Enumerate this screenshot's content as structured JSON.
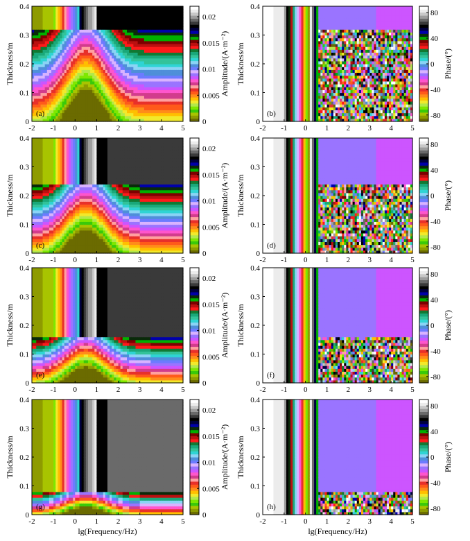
{
  "figure": {
    "x_axis_label": "lg(Frequency/Hz)",
    "y_axis_label": "Thickness/m",
    "x_ticks": [
      "-2",
      "-1",
      "0",
      "1",
      "2",
      "3",
      "4",
      "5"
    ],
    "y_ticks": [
      "0",
      "0.1",
      "0.2",
      "0.3",
      "0.4"
    ]
  },
  "chart_data": [
    {
      "type": "heatmap",
      "panel_label": "(a)",
      "quantity": "amplitude",
      "layer_top": 0.32,
      "xlabel": "",
      "ylabel": "Thickness/m",
      "xlim": [
        -2,
        5
      ],
      "ylim": [
        0,
        0.4
      ],
      "colorbar": {
        "label": "Amplitude/(A·m⁻²)",
        "ticks": [
          "0",
          "0.005",
          "0.01",
          "0.015",
          "0.02"
        ],
        "range": [
          0,
          0.022
        ]
      }
    },
    {
      "type": "heatmap",
      "panel_label": "(b)",
      "quantity": "phase",
      "layer_top": 0.32,
      "xlabel": "",
      "ylabel": "Thickness/m",
      "xlim": [
        -2,
        5
      ],
      "ylim": [
        0,
        0.4
      ],
      "colorbar": {
        "label": "Phase/(°)",
        "ticks": [
          "-80",
          "-40",
          "0",
          "40",
          "80"
        ],
        "range": [
          -90,
          90
        ]
      }
    },
    {
      "type": "heatmap",
      "panel_label": "(c)",
      "quantity": "amplitude",
      "layer_top": 0.24,
      "xlabel": "",
      "ylabel": "Thickness/m",
      "xlim": [
        -2,
        5
      ],
      "ylim": [
        0,
        0.4
      ],
      "colorbar": {
        "label": "Amplitude/(A·m⁻²)",
        "ticks": [
          "0",
          "0.005",
          "0.01",
          "0.015",
          "0.02"
        ],
        "range": [
          0,
          0.022
        ]
      }
    },
    {
      "type": "heatmap",
      "panel_label": "(d)",
      "quantity": "phase",
      "layer_top": 0.24,
      "xlabel": "",
      "ylabel": "Thickness/m",
      "xlim": [
        -2,
        5
      ],
      "ylim": [
        0,
        0.4
      ],
      "colorbar": {
        "label": "Phase/(°)",
        "ticks": [
          "-80",
          "-40",
          "0",
          "40",
          "80"
        ],
        "range": [
          -90,
          90
        ]
      }
    },
    {
      "type": "heatmap",
      "panel_label": "(e)",
      "quantity": "amplitude",
      "layer_top": 0.16,
      "xlabel": "",
      "ylabel": "Thickness/m",
      "xlim": [
        -2,
        5
      ],
      "ylim": [
        0,
        0.4
      ],
      "colorbar": {
        "label": "Amplitude/(A·m⁻²)",
        "ticks": [
          "0",
          "0.005",
          "0.01",
          "0.015",
          "0.02"
        ],
        "range": [
          0,
          0.022
        ]
      }
    },
    {
      "type": "heatmap",
      "panel_label": "(f)",
      "quantity": "phase",
      "layer_top": 0.16,
      "xlabel": "",
      "ylabel": "Thickness/m",
      "xlim": [
        -2,
        5
      ],
      "ylim": [
        0,
        0.4
      ],
      "colorbar": {
        "label": "Phase/(°)",
        "ticks": [
          "-80",
          "-40",
          "0",
          "40",
          "80"
        ],
        "range": [
          -90,
          90
        ]
      }
    },
    {
      "type": "heatmap",
      "panel_label": "(g)",
      "quantity": "amplitude",
      "layer_top": 0.08,
      "xlabel": "lg(Frequency/Hz)",
      "ylabel": "Thickness/m",
      "xlim": [
        -2,
        5
      ],
      "ylim": [
        0,
        0.4
      ],
      "colorbar": {
        "label": "Amplitude/(A·m⁻²)",
        "ticks": [
          "0",
          "0.005",
          "0.01",
          "0.015",
          "0.02"
        ],
        "range": [
          0,
          0.022
        ]
      }
    },
    {
      "type": "heatmap",
      "panel_label": "(h)",
      "quantity": "phase",
      "layer_top": 0.08,
      "xlabel": "lg(Frequency/Hz)",
      "ylabel": "Thickness/m",
      "xlim": [
        -2,
        5
      ],
      "ylim": [
        0,
        0.4
      ],
      "colorbar": {
        "label": "Phase/(°)",
        "ticks": [
          "-80",
          "-40",
          "0",
          "40",
          "80"
        ],
        "range": [
          -90,
          90
        ]
      }
    }
  ],
  "colormap": [
    "#6b6b00",
    "#8e9b00",
    "#a8c400",
    "#39c90a",
    "#7ee800",
    "#b2e84a",
    "#f2e92b",
    "#ffbf00",
    "#ff8c1a",
    "#ff5a1a",
    "#e8302a",
    "#ffa0a0",
    "#d23c8c",
    "#ff55cc",
    "#cc55ff",
    "#9a74ff",
    "#d9b3ff",
    "#6c7bff",
    "#4f8fd9",
    "#8ad4f5",
    "#2fd4d4",
    "#33c39a",
    "#1aa87a",
    "#117a33",
    "#ff1a1a",
    "#bb1010",
    "#7d0000",
    "#00b000",
    "#0a2a0a",
    "#0000aa",
    "#000040",
    "#000000",
    "#3a3a3a",
    "#6a6a6a",
    "#9d9d9d",
    "#c8c8c8",
    "#ececec",
    "#ffffff"
  ]
}
